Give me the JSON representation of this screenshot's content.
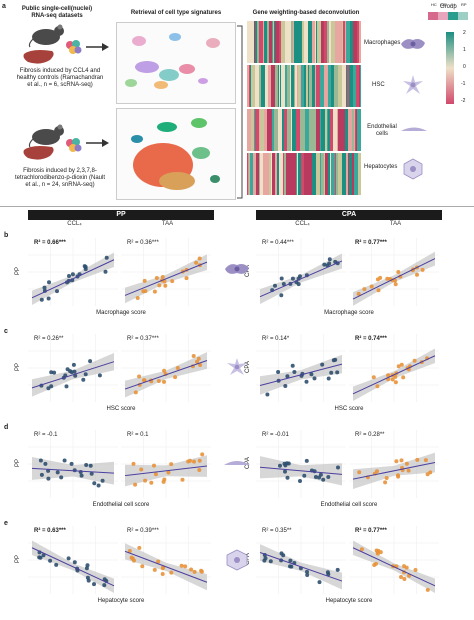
{
  "panel_a": {
    "label": "a",
    "datasets_title": "Public single-cell(nuclei) RNA-seq datasets",
    "dataset1": "Fibrosis induced by CCL4 and healthy controls (Ramachandran et al., n = 6, scRNA-seq)",
    "dataset2": "Fibrosis induced by 2,3,7,8-tetrachlorodibenzo-p-dioxin (Nault et al., n = 24, snRNA-seq)",
    "retrieval_title": "Retrieval of cell type signatures",
    "deconv_title": "Gene weighting-based deconvolution",
    "cell_types": [
      "Macrophages",
      "HSC",
      "Endothelial cells",
      "Hepatocytes"
    ],
    "group_label": "Group",
    "group_items": [
      "HC",
      "CIR",
      "IH",
      "RP"
    ],
    "colorbar_ticks": [
      "2",
      "1",
      "0",
      "-1",
      "-2"
    ],
    "colors": {
      "teal": "#2a9d8f",
      "pink": "#d1496b",
      "sage": "#9ab894",
      "cell": "#9b8fc4"
    }
  },
  "headers": {
    "pp": "PP",
    "cpa": "CPA",
    "ccl4": "CCL₄",
    "taa": "TAA"
  },
  "rows": [
    {
      "label": "b",
      "xlabel": "Macrophage score",
      "r2": [
        "R² = 0.66***",
        "R² = 0.36***",
        "R² = 0.44***",
        "R² = 0.77***"
      ],
      "bold": [
        true,
        false,
        false,
        true
      ],
      "icon": "macrophage-icon"
    },
    {
      "label": "c",
      "xlabel": "HSC score",
      "r2": [
        "R² = 0.26**",
        "R² = 0.37***",
        "R² = 0.14*",
        "R² = 0.74***"
      ],
      "bold": [
        false,
        false,
        false,
        true
      ],
      "icon": "hsc-icon"
    },
    {
      "label": "d",
      "xlabel": "Endothelial cell score",
      "r2": [
        "R² = -0.1",
        "R² = 0.1",
        "R² = -0.01",
        "R² = 0.28**"
      ],
      "bold": [
        false,
        false,
        false,
        false
      ],
      "icon": "endothelial-icon"
    },
    {
      "label": "e",
      "xlabel": "Hepatocyte score",
      "r2": [
        "R² = 0.63***",
        "R² = 0.39***",
        "R² = 0.35**",
        "R² = 0.77***"
      ],
      "bold": [
        true,
        false,
        false,
        true
      ],
      "icon": "hepatocyte-icon"
    }
  ],
  "ylabels": {
    "pp": "PP",
    "cpa": "CPA"
  },
  "chart_data": {
    "type": "scatter",
    "series_colors": {
      "ccl4": "#2f4f6f",
      "taa": "#e8923a",
      "fit": "#4b3fa0",
      "band": "#bdbdbd"
    },
    "slopes": [
      [
        0.8,
        0.7,
        0.75,
        0.85
      ],
      [
        0.55,
        0.6,
        0.45,
        0.8
      ],
      [
        -0.1,
        0.2,
        -0.15,
        0.35
      ],
      [
        -0.8,
        -0.65,
        -0.6,
        -0.8
      ]
    ]
  }
}
